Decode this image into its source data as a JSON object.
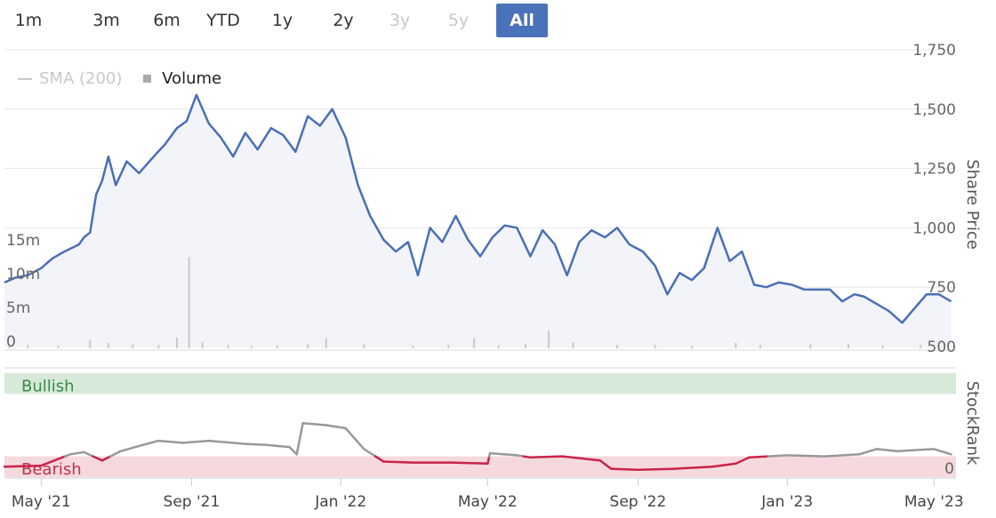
{
  "range_selector": {
    "buttons": [
      {
        "label": "1m",
        "state": "normal"
      },
      {
        "label": "3m",
        "state": "normal"
      },
      {
        "label": "6m",
        "state": "normal"
      },
      {
        "label": "YTD",
        "state": "normal"
      },
      {
        "label": "1y",
        "state": "normal"
      },
      {
        "label": "2y",
        "state": "normal"
      },
      {
        "label": "3y",
        "state": "disabled"
      },
      {
        "label": "5y",
        "state": "disabled"
      },
      {
        "label": "All",
        "state": "active"
      }
    ]
  },
  "legend": {
    "sma_label": "SMA (200)",
    "volume_label": "Volume"
  },
  "colors": {
    "price_line": "#4a6fb5",
    "price_fill": "#f2f4fa",
    "volume_bar": "#c9c9c9",
    "grid": "#e6e6e6",
    "bullish_band": "#d7ead9",
    "bearish_band": "#f6d9de",
    "bullish_text": "#3a8a45",
    "bearish_text": "#c0304a",
    "rank_high": "#999999",
    "rank_low": "#c8244a",
    "active_button": "#4a72b8"
  },
  "chart_data": [
    {
      "type": "line",
      "name": "share-price",
      "ylabel": "Share Price",
      "ylim": [
        500,
        1750
      ],
      "yticks": [
        "500",
        "750",
        "1,000",
        "1,250",
        "1,500",
        "1,750"
      ],
      "ytick_values": [
        500,
        750,
        1000,
        1250,
        1500,
        1750
      ],
      "grid": true,
      "area_fill": true,
      "x_ticks": [
        {
          "label": "May '21",
          "date": "2021-05-01"
        },
        {
          "label": "Sep '21",
          "date": "2021-09-01"
        },
        {
          "label": "Jan '22",
          "date": "2022-01-01"
        },
        {
          "label": "May '22",
          "date": "2022-05-01"
        },
        {
          "label": "Sep '22",
          "date": "2022-09-01"
        },
        {
          "label": "Jan '23",
          "date": "2023-01-01"
        },
        {
          "label": "May '23",
          "date": "2023-05-01"
        }
      ],
      "x": [
        "2021-04-01",
        "2021-04-10",
        "2021-04-20",
        "2021-05-01",
        "2021-05-10",
        "2021-05-20",
        "2021-06-01",
        "2021-06-05",
        "2021-06-10",
        "2021-06-15",
        "2021-06-20",
        "2021-06-25",
        "2021-07-01",
        "2021-07-10",
        "2021-07-20",
        "2021-08-01",
        "2021-08-10",
        "2021-08-20",
        "2021-08-28",
        "2021-09-05",
        "2021-09-15",
        "2021-09-25",
        "2021-10-05",
        "2021-10-15",
        "2021-10-25",
        "2021-11-05",
        "2021-11-15",
        "2021-11-25",
        "2021-12-05",
        "2021-12-15",
        "2021-12-25",
        "2022-01-05",
        "2022-01-15",
        "2022-01-25",
        "2022-02-05",
        "2022-02-15",
        "2022-02-25",
        "2022-03-05",
        "2022-03-15",
        "2022-03-25",
        "2022-04-05",
        "2022-04-15",
        "2022-04-25",
        "2022-05-05",
        "2022-05-15",
        "2022-05-25",
        "2022-06-05",
        "2022-06-15",
        "2022-06-25",
        "2022-07-05",
        "2022-07-15",
        "2022-07-25",
        "2022-08-05",
        "2022-08-15",
        "2022-08-25",
        "2022-09-05",
        "2022-09-15",
        "2022-09-25",
        "2022-10-05",
        "2022-10-15",
        "2022-10-25",
        "2022-11-05",
        "2022-11-15",
        "2022-11-25",
        "2022-12-05",
        "2022-12-15",
        "2022-12-25",
        "2023-01-05",
        "2023-01-15",
        "2023-01-25",
        "2023-02-05",
        "2023-02-15",
        "2023-02-25",
        "2023-03-05",
        "2023-03-15",
        "2023-03-25",
        "2023-04-05",
        "2023-04-15",
        "2023-04-25",
        "2023-05-05",
        "2023-05-15"
      ],
      "values": [
        770,
        790,
        800,
        830,
        870,
        900,
        930,
        960,
        980,
        1140,
        1200,
        1300,
        1180,
        1280,
        1230,
        1300,
        1350,
        1420,
        1450,
        1560,
        1440,
        1380,
        1300,
        1400,
        1330,
        1420,
        1390,
        1320,
        1470,
        1430,
        1500,
        1380,
        1180,
        1050,
        950,
        900,
        940,
        800,
        1000,
        940,
        1050,
        950,
        880,
        960,
        1010,
        1000,
        880,
        990,
        930,
        800,
        940,
        990,
        960,
        1000,
        930,
        900,
        840,
        720,
        810,
        780,
        830,
        1000,
        860,
        900,
        760,
        750,
        770,
        760,
        740,
        740,
        740,
        690,
        720,
        710,
        680,
        650,
        600,
        660,
        720,
        720,
        690
      ]
    },
    {
      "type": "bar",
      "name": "volume",
      "ylim": [
        0,
        20
      ],
      "yticks": [
        "0",
        "5m",
        "10m",
        "15m"
      ],
      "ytick_values": [
        0,
        5,
        10,
        15
      ],
      "x": [
        "2021-04-05",
        "2021-04-20",
        "2021-05-15",
        "2021-06-10",
        "2021-06-25",
        "2021-07-15",
        "2021-08-05",
        "2021-08-20",
        "2021-08-30",
        "2021-09-10",
        "2021-10-01",
        "2021-10-20",
        "2021-11-10",
        "2021-12-05",
        "2021-12-20",
        "2022-01-20",
        "2022-03-01",
        "2022-03-30",
        "2022-04-20",
        "2022-05-10",
        "2022-06-01",
        "2022-06-20",
        "2022-07-10",
        "2022-08-15",
        "2022-09-15",
        "2022-10-15",
        "2022-11-20",
        "2022-12-10",
        "2023-01-20",
        "2023-02-20",
        "2023-03-20",
        "2023-04-20",
        "2023-05-05"
      ],
      "values": [
        0.3,
        0.5,
        0.4,
        1.3,
        0.8,
        0.6,
        0.5,
        1.6,
        13.5,
        1.0,
        0.5,
        0.4,
        0.5,
        0.6,
        1.5,
        0.6,
        0.4,
        0.5,
        1.5,
        0.5,
        0.6,
        2.6,
        0.9,
        0.5,
        0.5,
        0.4,
        0.8,
        0.5,
        0.6,
        0.6,
        0.5,
        0.5,
        0.4
      ]
    },
    {
      "type": "line",
      "name": "stockrank",
      "ylabel": "StockRank",
      "ylim": [
        0,
        100
      ],
      "yticks": [
        "0"
      ],
      "ytick_values": [
        0
      ],
      "bands": [
        {
          "label": "Bullish",
          "from": 80,
          "to": 100
        },
        {
          "label": "Bearish",
          "from": 0,
          "to": 20
        }
      ],
      "threshold": 20,
      "x": [
        "2021-04-01",
        "2021-05-01",
        "2021-05-25",
        "2021-06-05",
        "2021-06-20",
        "2021-07-05",
        "2021-07-20",
        "2021-08-05",
        "2021-08-25",
        "2021-09-15",
        "2021-10-15",
        "2021-11-01",
        "2021-11-20",
        "2021-11-26",
        "2021-12-01",
        "2021-12-20",
        "2022-01-05",
        "2022-01-20",
        "2022-02-05",
        "2022-03-01",
        "2022-04-01",
        "2022-05-01",
        "2022-05-03",
        "2022-05-25",
        "2022-06-05",
        "2022-07-01",
        "2022-08-01",
        "2022-08-10",
        "2022-09-01",
        "2022-10-01",
        "2022-11-01",
        "2022-11-20",
        "2022-12-01",
        "2023-01-01",
        "2023-02-01",
        "2023-03-01",
        "2023-03-15",
        "2023-04-01",
        "2023-05-01",
        "2023-05-15"
      ],
      "values": [
        10,
        11,
        22,
        24,
        16,
        25,
        30,
        35,
        33,
        35,
        32,
        31,
        29,
        22,
        52,
        50,
        47,
        27,
        15,
        14,
        14,
        13,
        23,
        21,
        19,
        20,
        16,
        8,
        7,
        8,
        10,
        13,
        19,
        21,
        20,
        22,
        27,
        25,
        27,
        22
      ]
    }
  ]
}
